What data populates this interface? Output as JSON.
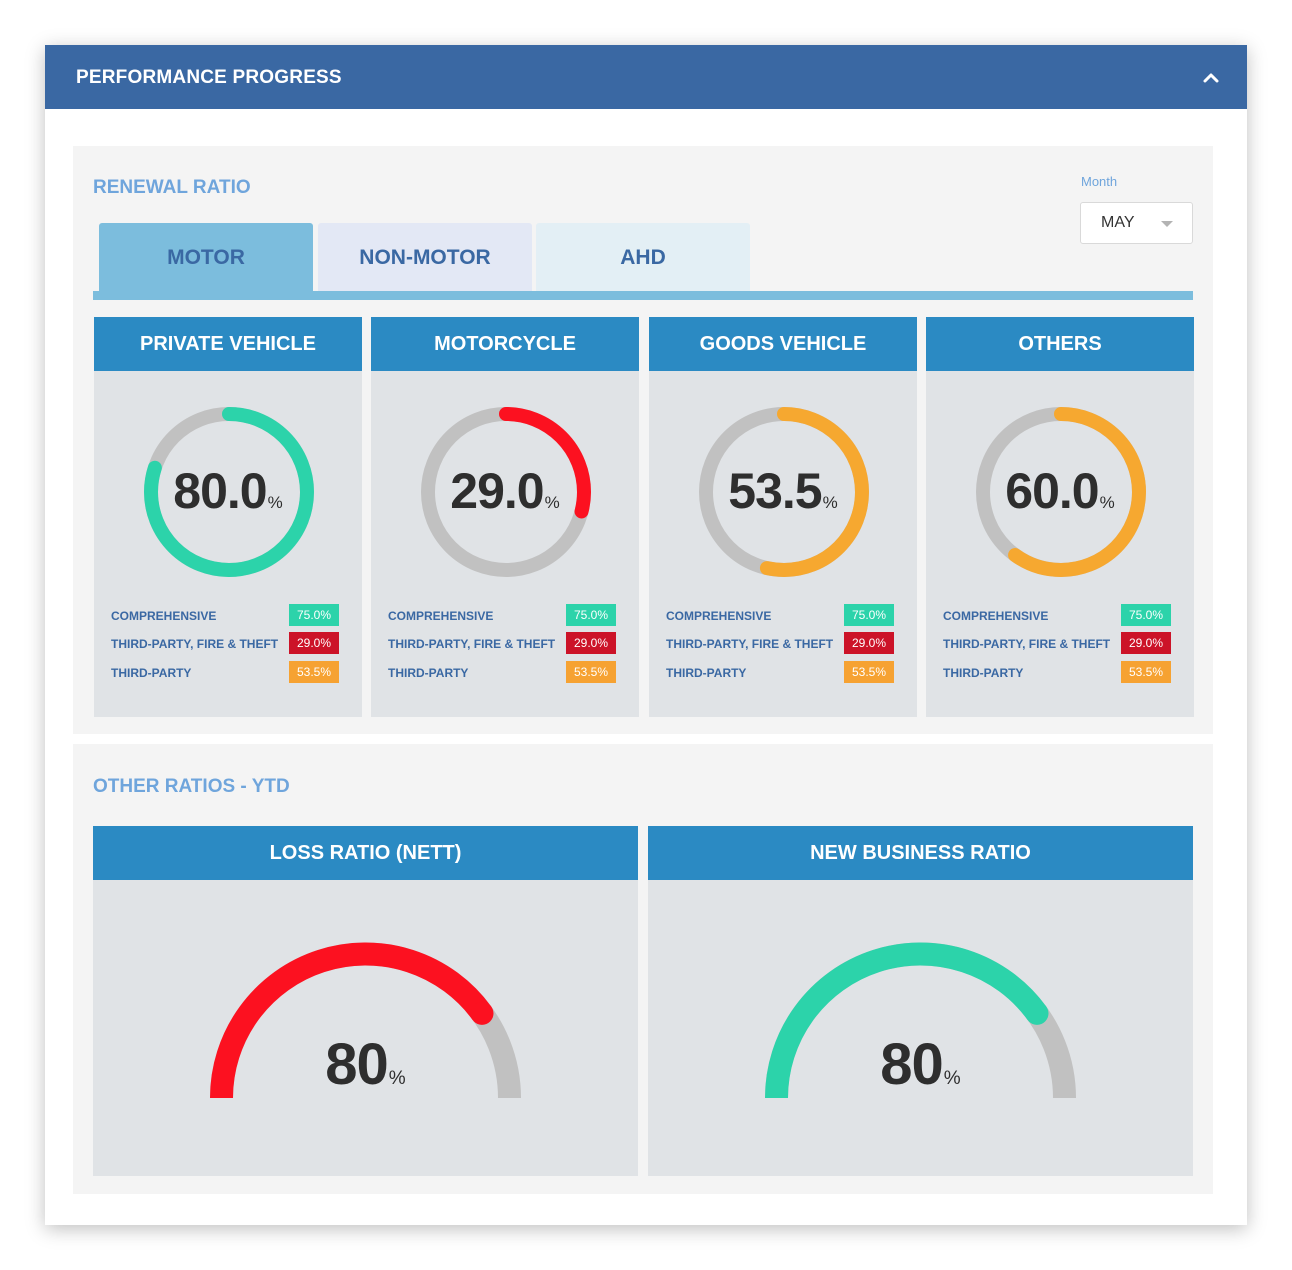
{
  "panel": {
    "title": "PERFORMANCE PROGRESS",
    "collapse_icon": "chevron-up-icon"
  },
  "renewal": {
    "title": "RENEWAL RATIO",
    "month": {
      "label": "Month",
      "value": "MAY",
      "icon": "chevron-down-icon"
    },
    "tabs": [
      {
        "label": "MOTOR",
        "active": true,
        "color": "#7cbddd"
      },
      {
        "label": "NON-MOTOR",
        "active": false,
        "color": "#e3e8f5"
      },
      {
        "label": "AHD",
        "active": false,
        "color": "#e3eff5"
      }
    ],
    "cards": [
      {
        "title": "PRIVATE VEHICLE",
        "value": "80.0",
        "ratio": 80.0,
        "color": "#2cd3aa",
        "rows": [
          {
            "label": "COMPREHENSIVE",
            "value": "75.0%",
            "color": "#2cd3aa"
          },
          {
            "label": "THIRD-PARTY, FIRE & THEFT",
            "value": "29.0%",
            "color": "#cc1328"
          },
          {
            "label": "THIRD-PARTY",
            "value": "53.5%",
            "color": "#f6a232"
          }
        ]
      },
      {
        "title": "MOTORCYCLE",
        "value": "29.0",
        "ratio": 29.0,
        "color": "#fc1120",
        "rows": [
          {
            "label": "COMPREHENSIVE",
            "value": "75.0%",
            "color": "#2cd3aa"
          },
          {
            "label": "THIRD-PARTY, FIRE & THEFT",
            "value": "29.0%",
            "color": "#cc1328"
          },
          {
            "label": "THIRD-PARTY",
            "value": "53.5%",
            "color": "#f6a232"
          }
        ]
      },
      {
        "title": "GOODS VEHICLE",
        "value": "53.5",
        "ratio": 53.5,
        "color": "#f6a830",
        "rows": [
          {
            "label": "COMPREHENSIVE",
            "value": "75.0%",
            "color": "#2cd3aa"
          },
          {
            "label": "THIRD-PARTY, FIRE & THEFT",
            "value": "29.0%",
            "color": "#cc1328"
          },
          {
            "label": "THIRD-PARTY",
            "value": "53.5%",
            "color": "#f6a232"
          }
        ]
      },
      {
        "title": "OTHERS",
        "value": "60.0",
        "ratio": 60.0,
        "color": "#f6a830",
        "rows": [
          {
            "label": "COMPREHENSIVE",
            "value": "75.0%",
            "color": "#2cd3aa"
          },
          {
            "label": "THIRD-PARTY, FIRE & THEFT",
            "value": "29.0%",
            "color": "#cc1328"
          },
          {
            "label": "THIRD-PARTY",
            "value": "53.5%",
            "color": "#f6a232"
          }
        ]
      }
    ]
  },
  "other": {
    "title": "OTHER RATIOS - YTD",
    "gauges": [
      {
        "title": "LOSS RATIO (NETT)",
        "value": "80",
        "ratio": 80,
        "color": "#fc1120"
      },
      {
        "title": "NEW BUSINESS RATIO",
        "value": "80",
        "ratio": 80,
        "color": "#2cd3aa"
      }
    ]
  },
  "percent_sign": "%",
  "track_color": "#c1c1c1"
}
